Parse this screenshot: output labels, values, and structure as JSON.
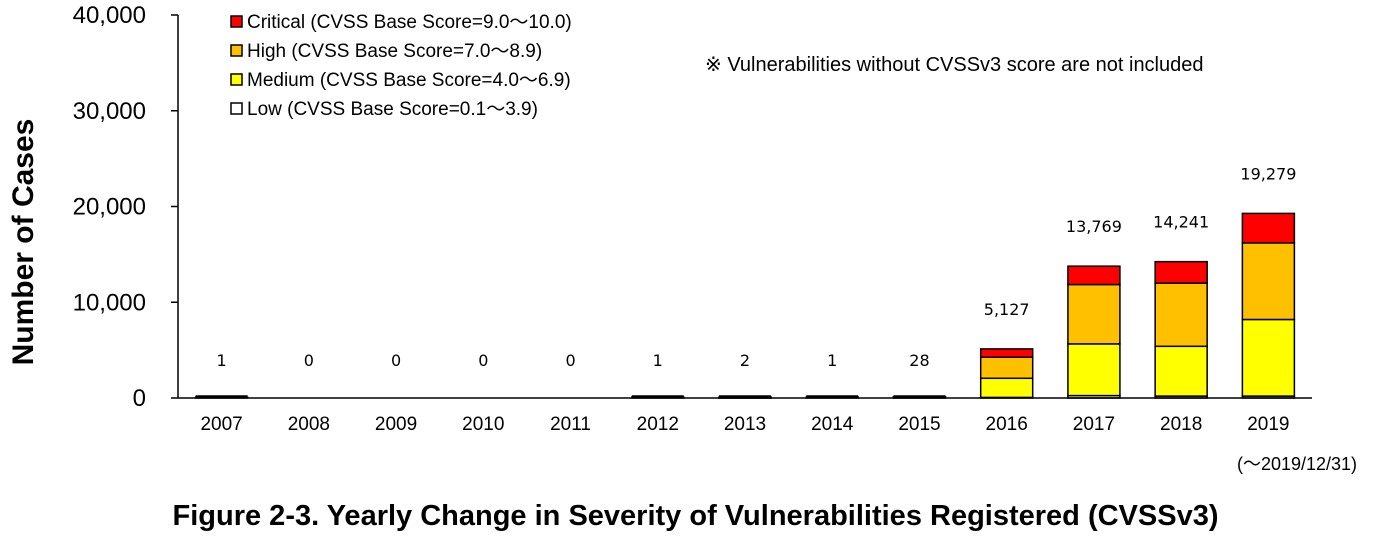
{
  "chart_data": {
    "type": "bar",
    "stacked": true,
    "title": "Figure 2-3. Yearly Change in Severity of Vulnerabilities Registered (CVSSv3)",
    "xlabel": "",
    "ylabel": "Number of Cases",
    "ylim": [
      0,
      40000
    ],
    "yticks": [
      0,
      10000,
      20000,
      30000,
      40000
    ],
    "ytick_labels": [
      "0",
      "10,000",
      "20,000",
      "30,000",
      "40,000"
    ],
    "categories": [
      "2007",
      "2008",
      "2009",
      "2010",
      "2011",
      "2012",
      "2013",
      "2014",
      "2015",
      "2016",
      "2017",
      "2018",
      "2019"
    ],
    "x_note": "(～2019/12/31)",
    "annotation": "※ Vulnerabilities without CVSSv3 score are not included",
    "legend_position": "top-left",
    "grid": false,
    "series": [
      {
        "name": "Low (CVSS Base Score=0.1～3.9)",
        "color": "#ffffff",
        "values": [
          0,
          0,
          0,
          0,
          0,
          0,
          0,
          0,
          0,
          60,
          250,
          200,
          200
        ]
      },
      {
        "name": "Medium (CVSS Base Score=4.0～6.9)",
        "color": "#ffff00",
        "values": [
          1,
          0,
          0,
          0,
          0,
          1,
          1,
          1,
          15,
          2000,
          5400,
          5200,
          8000
        ]
      },
      {
        "name": "High (CVSS Base Score=7.0～8.9)",
        "color": "#ffc000",
        "values": [
          0,
          0,
          0,
          0,
          0,
          0,
          1,
          0,
          10,
          2200,
          6200,
          6600,
          8000
        ]
      },
      {
        "name": "Critical (CVSS Base Score=9.0～10.0)",
        "color": "#ff0000",
        "values": [
          0,
          0,
          0,
          0,
          0,
          0,
          0,
          0,
          3,
          867,
          1919,
          2241,
          3079
        ]
      }
    ],
    "totals": [
      1,
      0,
      0,
      0,
      0,
      1,
      2,
      1,
      28,
      5127,
      13769,
      14241,
      19279
    ],
    "total_labels": [
      "1",
      "0",
      "0",
      "0",
      "0",
      "1",
      "2",
      "1",
      "28",
      "5,127",
      "13,769",
      "14,241",
      "19,279"
    ]
  }
}
